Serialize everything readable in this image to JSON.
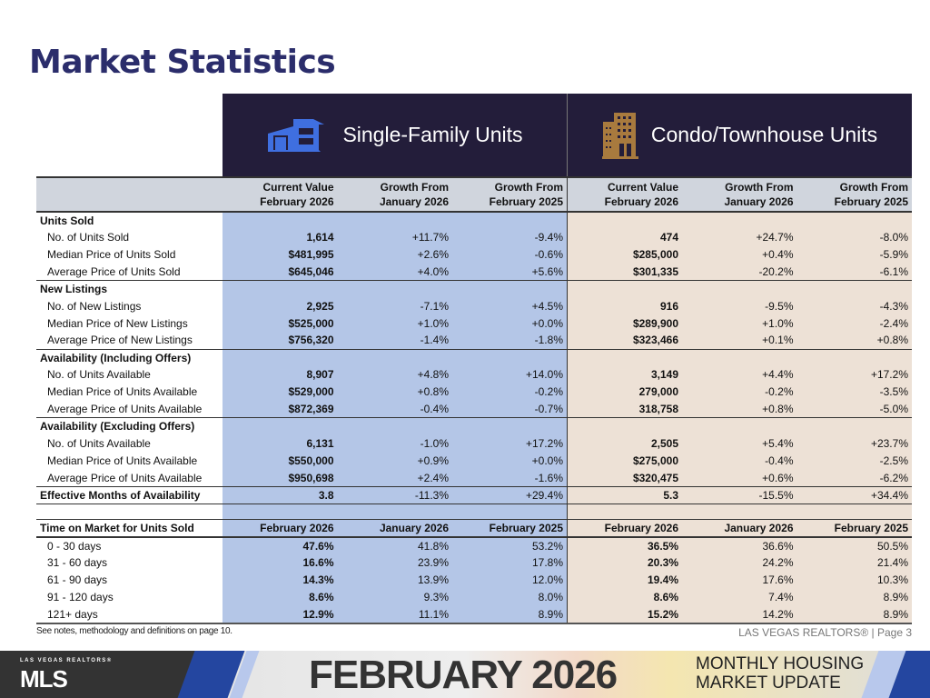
{
  "title": "Market Statistics",
  "banner": {
    "sf": "Single-Family Units",
    "condo": "Condo/Townhouse Units"
  },
  "headers": [
    [
      "Current Value",
      "February 2026"
    ],
    [
      "Growth From",
      "January 2026"
    ],
    [
      "Growth From",
      "February 2025"
    ],
    [
      "Current Value",
      "February 2026"
    ],
    [
      "Growth From",
      "January 2026"
    ],
    [
      "Growth From",
      "February 2025"
    ]
  ],
  "rows": [
    {
      "t": "sec",
      "label": "Units Sold"
    },
    {
      "t": "item",
      "label": "No. of Units Sold",
      "v": [
        "1,614",
        "+11.7%",
        "-9.4%",
        "474",
        "+24.7%",
        "-8.0%"
      ]
    },
    {
      "t": "item",
      "label": "Median Price of Units Sold",
      "v": [
        "$481,995",
        "+2.6%",
        "-0.6%",
        "$285,000",
        "+0.4%",
        "-5.9%"
      ]
    },
    {
      "t": "item end",
      "label": "Average Price of Units Sold",
      "v": [
        "$645,046",
        "+4.0%",
        "+5.6%",
        "$301,335",
        "-20.2%",
        "-6.1%"
      ]
    },
    {
      "t": "sec",
      "label": "New Listings"
    },
    {
      "t": "item",
      "label": "No. of New Listings",
      "v": [
        "2,925",
        "-7.1%",
        "+4.5%",
        "916",
        "-9.5%",
        "-4.3%"
      ]
    },
    {
      "t": "item",
      "label": "Median Price of New Listings",
      "v": [
        "$525,000",
        "+1.0%",
        "+0.0%",
        "$289,900",
        "+1.0%",
        "-2.4%"
      ]
    },
    {
      "t": "item end",
      "label": "Average Price of New Listings",
      "v": [
        "$756,320",
        "-1.4%",
        "-1.8%",
        "$323,466",
        "+0.1%",
        "+0.8%"
      ]
    },
    {
      "t": "sec",
      "label": "Availability (Including Offers)"
    },
    {
      "t": "item",
      "label": "No. of Units Available",
      "v": [
        "8,907",
        "+4.8%",
        "+14.0%",
        "3,149",
        "+4.4%",
        "+17.2%"
      ]
    },
    {
      "t": "item",
      "label": "Median Price of Units Available",
      "v": [
        "$529,000",
        "+0.8%",
        "-0.2%",
        "279,000",
        "-0.2%",
        "-3.5%"
      ]
    },
    {
      "t": "item end",
      "label": "Average Price of Units Available",
      "v": [
        "$872,369",
        "-0.4%",
        "-0.7%",
        "318,758",
        "+0.8%",
        "-5.0%"
      ]
    },
    {
      "t": "sec",
      "label": "Availability (Excluding Offers)"
    },
    {
      "t": "item",
      "label": "No. of Units Available",
      "v": [
        "6,131",
        "-1.0%",
        "+17.2%",
        "2,505",
        "+5.4%",
        "+23.7%"
      ]
    },
    {
      "t": "item",
      "label": "Median Price of Units Available",
      "v": [
        "$550,000",
        "+0.9%",
        "+0.0%",
        "$275,000",
        "-0.4%",
        "-2.5%"
      ]
    },
    {
      "t": "item end",
      "label": "Average Price of Units Available",
      "v": [
        "$950,698",
        "+2.4%",
        "-1.6%",
        "$320,475",
        "+0.6%",
        "-6.2%"
      ]
    },
    {
      "t": "tot end",
      "label": "Effective Months of Availability",
      "v": [
        "3.8",
        "-11.3%",
        "+29.4%",
        "5.3",
        "-15.5%",
        "+34.4%"
      ]
    },
    {
      "t": "blank"
    },
    {
      "t": "tom",
      "label": "Time on Market for Units Sold",
      "v": [
        "February 2026",
        "January 2026",
        "February 2025",
        "February 2026",
        "January 2026",
        "February 2025"
      ]
    },
    {
      "t": "item",
      "label": "0 - 30 days",
      "v": [
        "47.6%",
        "41.8%",
        "53.2%",
        "36.5%",
        "36.6%",
        "50.5%"
      ]
    },
    {
      "t": "item",
      "label": "31 - 60 days",
      "v": [
        "16.6%",
        "23.9%",
        "17.8%",
        "20.3%",
        "24.2%",
        "21.4%"
      ]
    },
    {
      "t": "item",
      "label": "61 - 90 days",
      "v": [
        "14.3%",
        "13.9%",
        "12.0%",
        "19.4%",
        "17.6%",
        "10.3%"
      ]
    },
    {
      "t": "item",
      "label": "91 - 120 days",
      "v": [
        "8.6%",
        "9.3%",
        "8.0%",
        "8.6%",
        "7.4%",
        "8.9%"
      ]
    },
    {
      "t": "item tomlast",
      "label": "121+ days",
      "v": [
        "12.9%",
        "11.1%",
        "8.9%",
        "15.2%",
        "14.2%",
        "8.9%"
      ]
    }
  ],
  "note": "See notes, methodology and definitions on page 10.",
  "page_label": "LAS VEGAS REALTORS® | Page 3",
  "footer": {
    "logo_top": "LAS VEGAS REALTORS®",
    "logo": "MLS",
    "big": "FEBRUARY 2026",
    "line1": "MONTHLY HOUSING",
    "line2": "MARKET UPDATE"
  },
  "colors": {
    "title": "#2b2d6b",
    "banner": "#231d3a",
    "sf": "#b4c6e7",
    "condo": "#ede1d6",
    "sf_icon": "#3f6fe0",
    "condo_icon": "#a87a3e"
  }
}
